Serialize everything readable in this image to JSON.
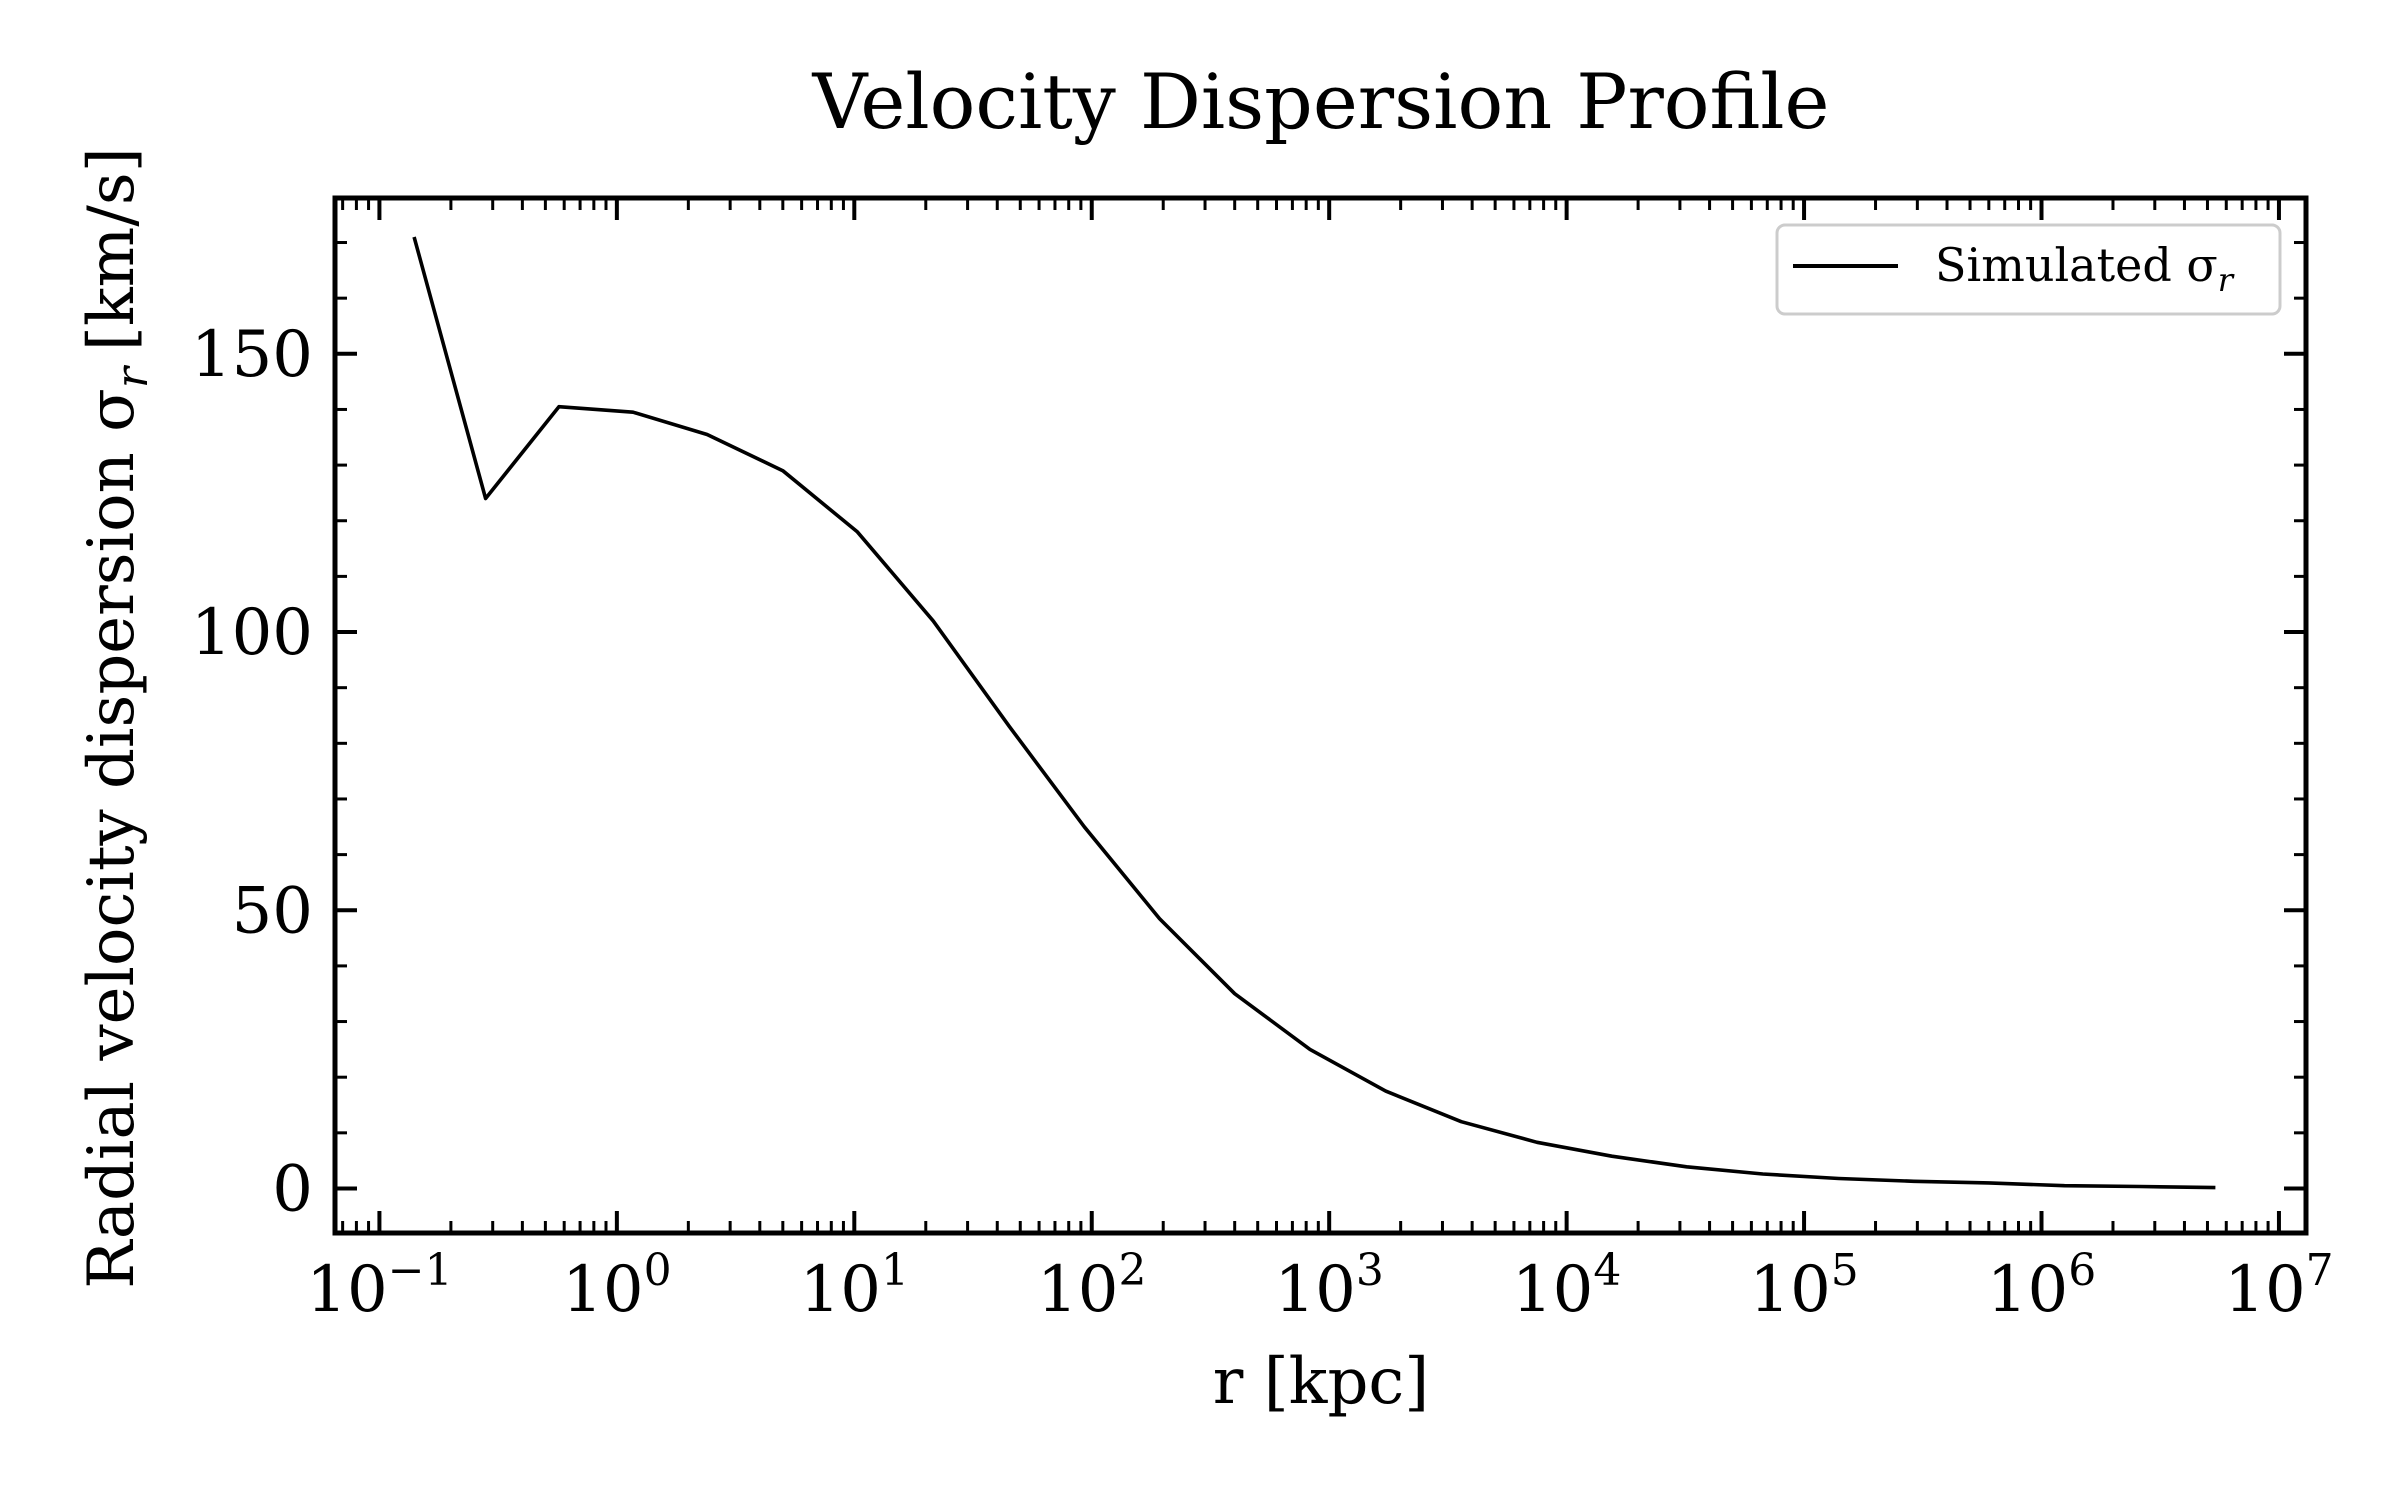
{
  "chart_data": {
    "type": "line",
    "title": "Velocity Dispersion Profile",
    "xlabel": "r [kpc]",
    "ylabel": "Radial velocity dispersion σ",
    "ylabel_subscript": "r",
    "ylabel_unit": "[km/s]",
    "x_scale": "log",
    "xlim": [
      0.065,
      13000000
    ],
    "ylim": [
      -8,
      178
    ],
    "grid": false,
    "legend_position": "top-right",
    "x_ticks": [
      {
        "base": "10",
        "exp": "−1",
        "value": 0.1
      },
      {
        "base": "10",
        "exp": "0",
        "value": 1
      },
      {
        "base": "10",
        "exp": "1",
        "value": 10
      },
      {
        "base": "10",
        "exp": "2",
        "value": 100
      },
      {
        "base": "10",
        "exp": "3",
        "value": 1000
      },
      {
        "base": "10",
        "exp": "4",
        "value": 10000
      },
      {
        "base": "10",
        "exp": "5",
        "value": 100000
      },
      {
        "base": "10",
        "exp": "6",
        "value": 1000000
      },
      {
        "base": "10",
        "exp": "7",
        "value": 10000000
      }
    ],
    "y_ticks": [
      {
        "label": "0",
        "value": 0
      },
      {
        "label": "50",
        "value": 50
      },
      {
        "label": "100",
        "value": 100
      },
      {
        "label": "150",
        "value": 150
      }
    ],
    "series": [
      {
        "name": "Simulated σ",
        "name_subscript": "r",
        "color": "#000000",
        "x": [
          0.14,
          0.28,
          0.57,
          1.17,
          2.4,
          5.0,
          10.3,
          21.5,
          45,
          93,
          193,
          400,
          830,
          1730,
          3600,
          7500,
          15500,
          32000,
          67000,
          140000,
          290000,
          600000,
          1250000,
          2600000,
          5400000
        ],
        "y": [
          171,
          124,
          140.5,
          139.5,
          135.5,
          129,
          118,
          102,
          83,
          65,
          48.5,
          35,
          25,
          17.5,
          12,
          8.3,
          5.8,
          3.9,
          2.6,
          1.8,
          1.3,
          1.0,
          0.5,
          0.35,
          0.15
        ]
      }
    ]
  }
}
